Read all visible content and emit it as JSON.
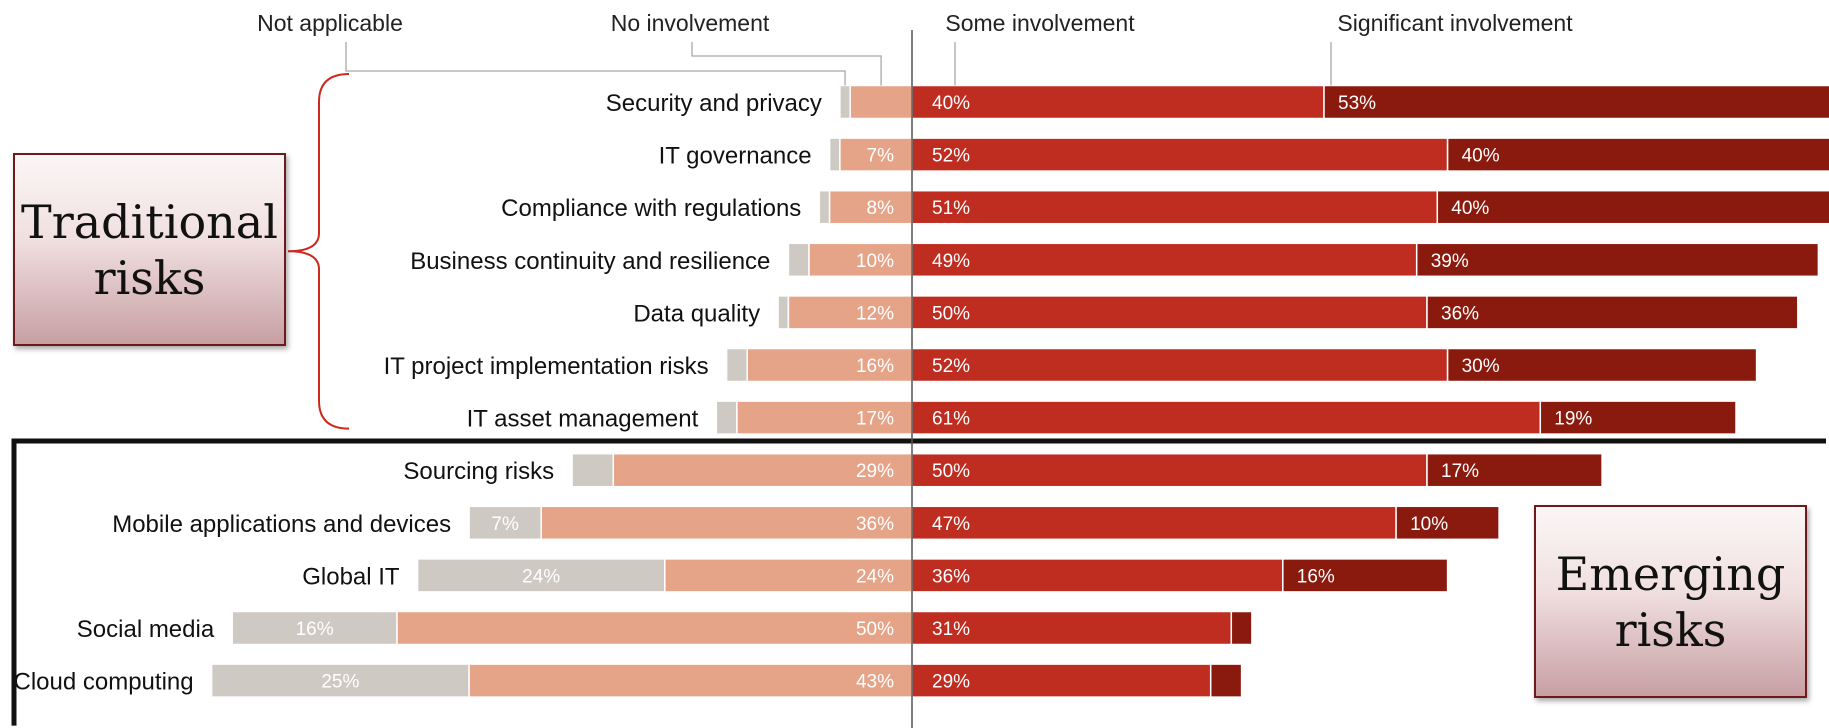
{
  "chart_data": {
    "type": "bar",
    "orientation": "horizontal-diverging",
    "legend": [
      "Not applicable",
      "No involvement",
      "Some involvement",
      "Significant involvement"
    ],
    "categories": [
      "Security and privacy",
      "IT governance",
      "Compliance with regulations",
      "Business continuity and resilience",
      "Data quality",
      "IT project implementation risks",
      "IT asset management",
      "Sourcing risks",
      "Mobile applications and devices",
      "Global IT",
      "Social media",
      "Cloud computing"
    ],
    "series": [
      {
        "name": "Not applicable",
        "values": [
          1,
          1,
          1,
          2,
          1,
          2,
          2,
          4,
          7,
          24,
          16,
          25
        ],
        "labels": [
          "",
          "",
          "",
          "",
          "",
          "",
          "",
          "",
          "7%",
          "24%",
          "16%",
          "25%"
        ]
      },
      {
        "name": "No involvement",
        "values": [
          6,
          7,
          8,
          10,
          12,
          16,
          17,
          29,
          36,
          24,
          50,
          43
        ],
        "labels": [
          "",
          "7%",
          "8%",
          "10%",
          "12%",
          "16%",
          "17%",
          "29%",
          "36%",
          "24%",
          "50%",
          "43%"
        ]
      },
      {
        "name": "Some involvement",
        "values": [
          40,
          52,
          51,
          49,
          50,
          52,
          61,
          50,
          47,
          36,
          31,
          29
        ],
        "labels": [
          "40%",
          "52%",
          "51%",
          "49%",
          "50%",
          "52%",
          "61%",
          "50%",
          "47%",
          "36%",
          "31%",
          "29%"
        ]
      },
      {
        "name": "Significant involvement",
        "values": [
          53,
          40,
          40,
          39,
          36,
          30,
          19,
          17,
          10,
          16,
          2,
          3
        ],
        "labels": [
          "53%",
          "40%",
          "40%",
          "39%",
          "36%",
          "30%",
          "19%",
          "17%",
          "10%",
          "16%",
          "",
          ""
        ]
      }
    ],
    "colors": [
      "#cfc9c4",
      "#e5a488",
      "#bf2d20",
      "#8b1a0e"
    ],
    "groups": [
      {
        "label_lines": [
          "Traditional",
          "risks"
        ],
        "start_index": 0,
        "end_index": 6
      },
      {
        "label_lines": [
          "Emerging",
          "risks"
        ],
        "start_index": 7,
        "end_index": 11
      }
    ]
  }
}
